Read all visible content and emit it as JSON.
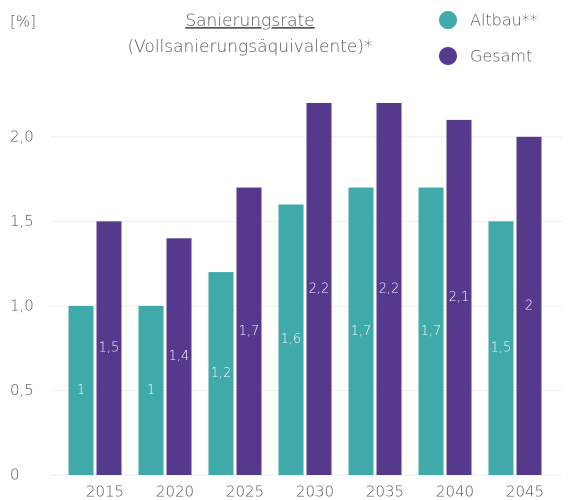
{
  "chart_data": {
    "type": "bar",
    "title": "Sanierungsrate",
    "subtitle": "(Vollsanierungsäquivalente)*",
    "y_label": "[%]",
    "categories": [
      "2015",
      "2020",
      "2025",
      "2030",
      "2035",
      "2040",
      "2045"
    ],
    "series": [
      {
        "name": "Altbau**",
        "color": "#40a9aa",
        "values": [
          1,
          1,
          1.2,
          1.6,
          1.7,
          1.7,
          1.5
        ],
        "value_labels": [
          "1",
          "1",
          "1,2",
          "1,6",
          "1,7",
          "1,7",
          "1,5"
        ]
      },
      {
        "name": "Gesamt",
        "color": "#55398c",
        "values": [
          1.5,
          1.4,
          1.7,
          2.2,
          2.2,
          2.1,
          2
        ],
        "value_labels": [
          "1,5",
          "1,4",
          "1,7",
          "2,2",
          "2,2",
          "2,1",
          "2"
        ]
      }
    ],
    "ylim": [
      0,
      2.2
    ],
    "yticks": [
      0,
      {
        "value": 0.5,
        "label": "0,5"
      },
      {
        "value": 1,
        "label": "1,0"
      },
      {
        "value": 1.5,
        "label": "1,5"
      },
      {
        "value": 2,
        "label": "2,0"
      }
    ],
    "grid": true,
    "legend": "top-right"
  }
}
